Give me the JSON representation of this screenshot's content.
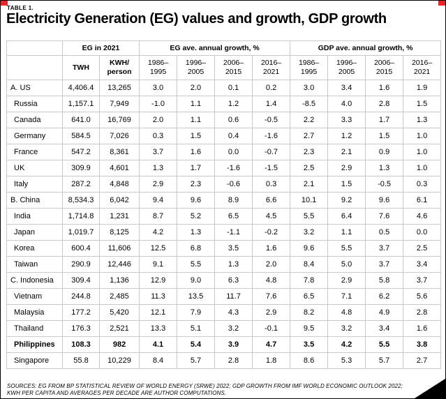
{
  "page": {
    "table_label": "TABLE 1.",
    "title": "Electricity Generation (EG) values and growth, GDP growth",
    "source_note": "SOURCES: EG FROM BP STATISTICAL REVIEW OF WORLD ENERGY (SRWE) 2022; GDP GROWTH FROM IMF WORLD ECONOMIC OUTLOOK 2022; KWH PER CAPITA AND AVERAGES PER DECADE ARE AUTHOR COMPUTATIONS."
  },
  "colors": {
    "accent_red": "#e8262a",
    "grid_gray": "#c8c8c8",
    "text_black": "#000000"
  },
  "chart_data": {
    "type": "table",
    "title": "Electricity Generation (EG) values and growth, GDP growth",
    "column_groups": [
      {
        "label": "",
        "span": 1
      },
      {
        "label": "EG in 2021",
        "span": 2
      },
      {
        "label": "EG ave. annual growth, %",
        "span": 4
      },
      {
        "label": "GDP ave. annual growth, %",
        "span": 4
      }
    ],
    "sub_headers": [
      "",
      "TWH",
      "KWH/\nperson",
      "1986–\n1995",
      "1996–\n2005",
      "2006–\n2015",
      "2016–\n2021",
      "1986–\n1995",
      "1996–\n2005",
      "2006–\n2015",
      "2016–\n2021"
    ],
    "rows": [
      {
        "country": "A. US",
        "indent": false,
        "bold": false,
        "values": [
          "4,406.4",
          "13,265",
          "3.0",
          "2.0",
          "0.1",
          "0.2",
          "3.0",
          "3.4",
          "1.6",
          "1.9"
        ]
      },
      {
        "country": "Russia",
        "indent": true,
        "bold": false,
        "values": [
          "1,157.1",
          "7,949",
          "-1.0",
          "1.1",
          "1.2",
          "1.4",
          "-8.5",
          "4.0",
          "2.8",
          "1.5"
        ]
      },
      {
        "country": "Canada",
        "indent": true,
        "bold": false,
        "values": [
          "641.0",
          "16,769",
          "2.0",
          "1.1",
          "0.6",
          "-0.5",
          "2.2",
          "3.3",
          "1.7",
          "1.3"
        ]
      },
      {
        "country": "Germany",
        "indent": true,
        "bold": false,
        "values": [
          "584.5",
          "7,026",
          "0.3",
          "1.5",
          "0.4",
          "-1.6",
          "2.7",
          "1.2",
          "1.5",
          "1.0"
        ]
      },
      {
        "country": "France",
        "indent": true,
        "bold": false,
        "values": [
          "547.2",
          "8,361",
          "3.7",
          "1.6",
          "0.0",
          "-0.7",
          "2.3",
          "2.1",
          "0.9",
          "1.0"
        ]
      },
      {
        "country": "UK",
        "indent": true,
        "bold": false,
        "values": [
          "309.9",
          "4,601",
          "1.3",
          "1.7",
          "-1.6",
          "-1.5",
          "2.5",
          "2.9",
          "1.3",
          "1.0"
        ]
      },
      {
        "country": "Italy",
        "indent": true,
        "bold": false,
        "values": [
          "287.2",
          "4,848",
          "2.9",
          "2.3",
          "-0.6",
          "0.3",
          "2.1",
          "1.5",
          "-0.5",
          "0.3"
        ]
      },
      {
        "country": "B. China",
        "indent": false,
        "bold": false,
        "values": [
          "8,534.3",
          "6,042",
          "9.4",
          "9.6",
          "8.9",
          "6.6",
          "10.1",
          "9.2",
          "9.6",
          "6.1"
        ]
      },
      {
        "country": "India",
        "indent": true,
        "bold": false,
        "values": [
          "1,714.8",
          "1,231",
          "8.7",
          "5.2",
          "6.5",
          "4.5",
          "5.5",
          "6.4",
          "7.6",
          "4.6"
        ]
      },
      {
        "country": "Japan",
        "indent": true,
        "bold": false,
        "values": [
          "1,019.7",
          "8,125",
          "4.2",
          "1.3",
          "-1.1",
          "-0.2",
          "3.2",
          "1.1",
          "0.5",
          "0.0"
        ]
      },
      {
        "country": "Korea",
        "indent": true,
        "bold": false,
        "values": [
          "600.4",
          "11,606",
          "12.5",
          "6.8",
          "3.5",
          "1.6",
          "9.6",
          "5.5",
          "3.7",
          "2.5"
        ]
      },
      {
        "country": "Taiwan",
        "indent": true,
        "bold": false,
        "values": [
          "290.9",
          "12,446",
          "9.1",
          "5.5",
          "1.3",
          "2.0",
          "8.4",
          "5.0",
          "3.7",
          "3.4"
        ]
      },
      {
        "country": "C. Indonesia",
        "indent": false,
        "bold": false,
        "values": [
          "309.4",
          "1,136",
          "12.9",
          "9.0",
          "6.3",
          "4.8",
          "7.8",
          "2.9",
          "5.8",
          "3.7"
        ]
      },
      {
        "country": "Vietnam",
        "indent": true,
        "bold": false,
        "values": [
          "244.8",
          "2,485",
          "11.3",
          "13.5",
          "11.7",
          "7.6",
          "6.5",
          "7.1",
          "6.2",
          "5.6"
        ]
      },
      {
        "country": "Malaysia",
        "indent": true,
        "bold": false,
        "values": [
          "177.2",
          "5,420",
          "12.1",
          "7.9",
          "4.3",
          "2.9",
          "8.2",
          "4.8",
          "4.9",
          "2.8"
        ]
      },
      {
        "country": "Thailand",
        "indent": true,
        "bold": false,
        "values": [
          "176.3",
          "2,521",
          "13.3",
          "5.1",
          "3.2",
          "-0.1",
          "9.5",
          "3.2",
          "3.4",
          "1.6"
        ]
      },
      {
        "country": "Philippines",
        "indent": true,
        "bold": true,
        "values": [
          "108.3",
          "982",
          "4.1",
          "5.4",
          "3.9",
          "4.7",
          "3.5",
          "4.2",
          "5.5",
          "3.8"
        ]
      },
      {
        "country": "Singapore",
        "indent": true,
        "bold": false,
        "values": [
          "55.8",
          "10,229",
          "8.4",
          "5.7",
          "2.8",
          "1.8",
          "8.6",
          "5.3",
          "5.7",
          "2.7"
        ]
      }
    ]
  }
}
